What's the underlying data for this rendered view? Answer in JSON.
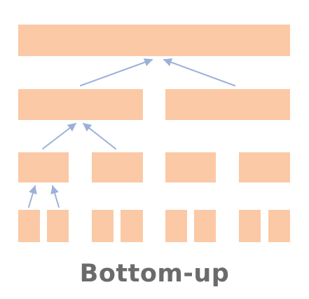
{
  "caption": "Bottom-up",
  "colors": {
    "block": "#fbc9a6",
    "arrow": "#9cb1d9",
    "caption": "#6b6b6b",
    "background": "#ffffff"
  },
  "levels": [
    {
      "level": 1,
      "segments": 1
    },
    {
      "level": 2,
      "segments": 2
    },
    {
      "level": 3,
      "segments": 4
    },
    {
      "level": 4,
      "segments": 8
    }
  ],
  "arrow_direction": "up"
}
